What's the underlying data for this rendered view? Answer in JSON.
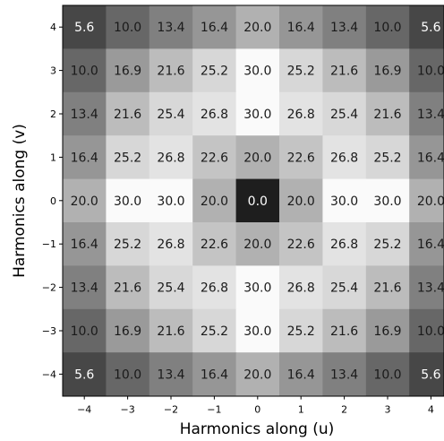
{
  "chart_data": {
    "type": "heatmap",
    "xlabel": "Harmonics along (u)",
    "ylabel": "Harmonics along (v)",
    "x_ticks": [
      "−4",
      "−3",
      "−2",
      "−1",
      "0",
      "1",
      "2",
      "3",
      "4"
    ],
    "y_ticks": [
      "4",
      "3",
      "2",
      "1",
      "0",
      "−1",
      "−2",
      "−3",
      "−4"
    ],
    "x": [
      -4,
      -3,
      -2,
      -1,
      0,
      1,
      2,
      3,
      4
    ],
    "y": [
      4,
      3,
      2,
      1,
      0,
      -1,
      -2,
      -3,
      -4
    ],
    "value_range": [
      0,
      30
    ],
    "colormap": "gray",
    "values": [
      [
        5.6,
        10.0,
        13.4,
        16.4,
        20.0,
        16.4,
        13.4,
        10.0,
        5.6
      ],
      [
        10.0,
        16.9,
        21.6,
        25.2,
        30.0,
        25.2,
        21.6,
        16.9,
        10.0
      ],
      [
        13.4,
        21.6,
        25.4,
        26.8,
        30.0,
        26.8,
        25.4,
        21.6,
        13.4
      ],
      [
        16.4,
        25.2,
        26.8,
        22.6,
        20.0,
        22.6,
        26.8,
        25.2,
        16.4
      ],
      [
        20.0,
        30.0,
        30.0,
        20.0,
        0.0,
        20.0,
        30.0,
        30.0,
        20.0
      ],
      [
        16.4,
        25.2,
        26.8,
        22.6,
        20.0,
        22.6,
        26.8,
        25.2,
        16.4
      ],
      [
        13.4,
        21.6,
        25.4,
        26.8,
        30.0,
        26.8,
        25.4,
        21.6,
        13.4
      ],
      [
        10.0,
        16.9,
        21.6,
        25.2,
        30.0,
        25.2,
        21.6,
        16.9,
        10.0
      ],
      [
        5.6,
        10.0,
        13.4,
        16.4,
        20.0,
        16.4,
        13.4,
        10.0,
        5.6
      ]
    ]
  }
}
